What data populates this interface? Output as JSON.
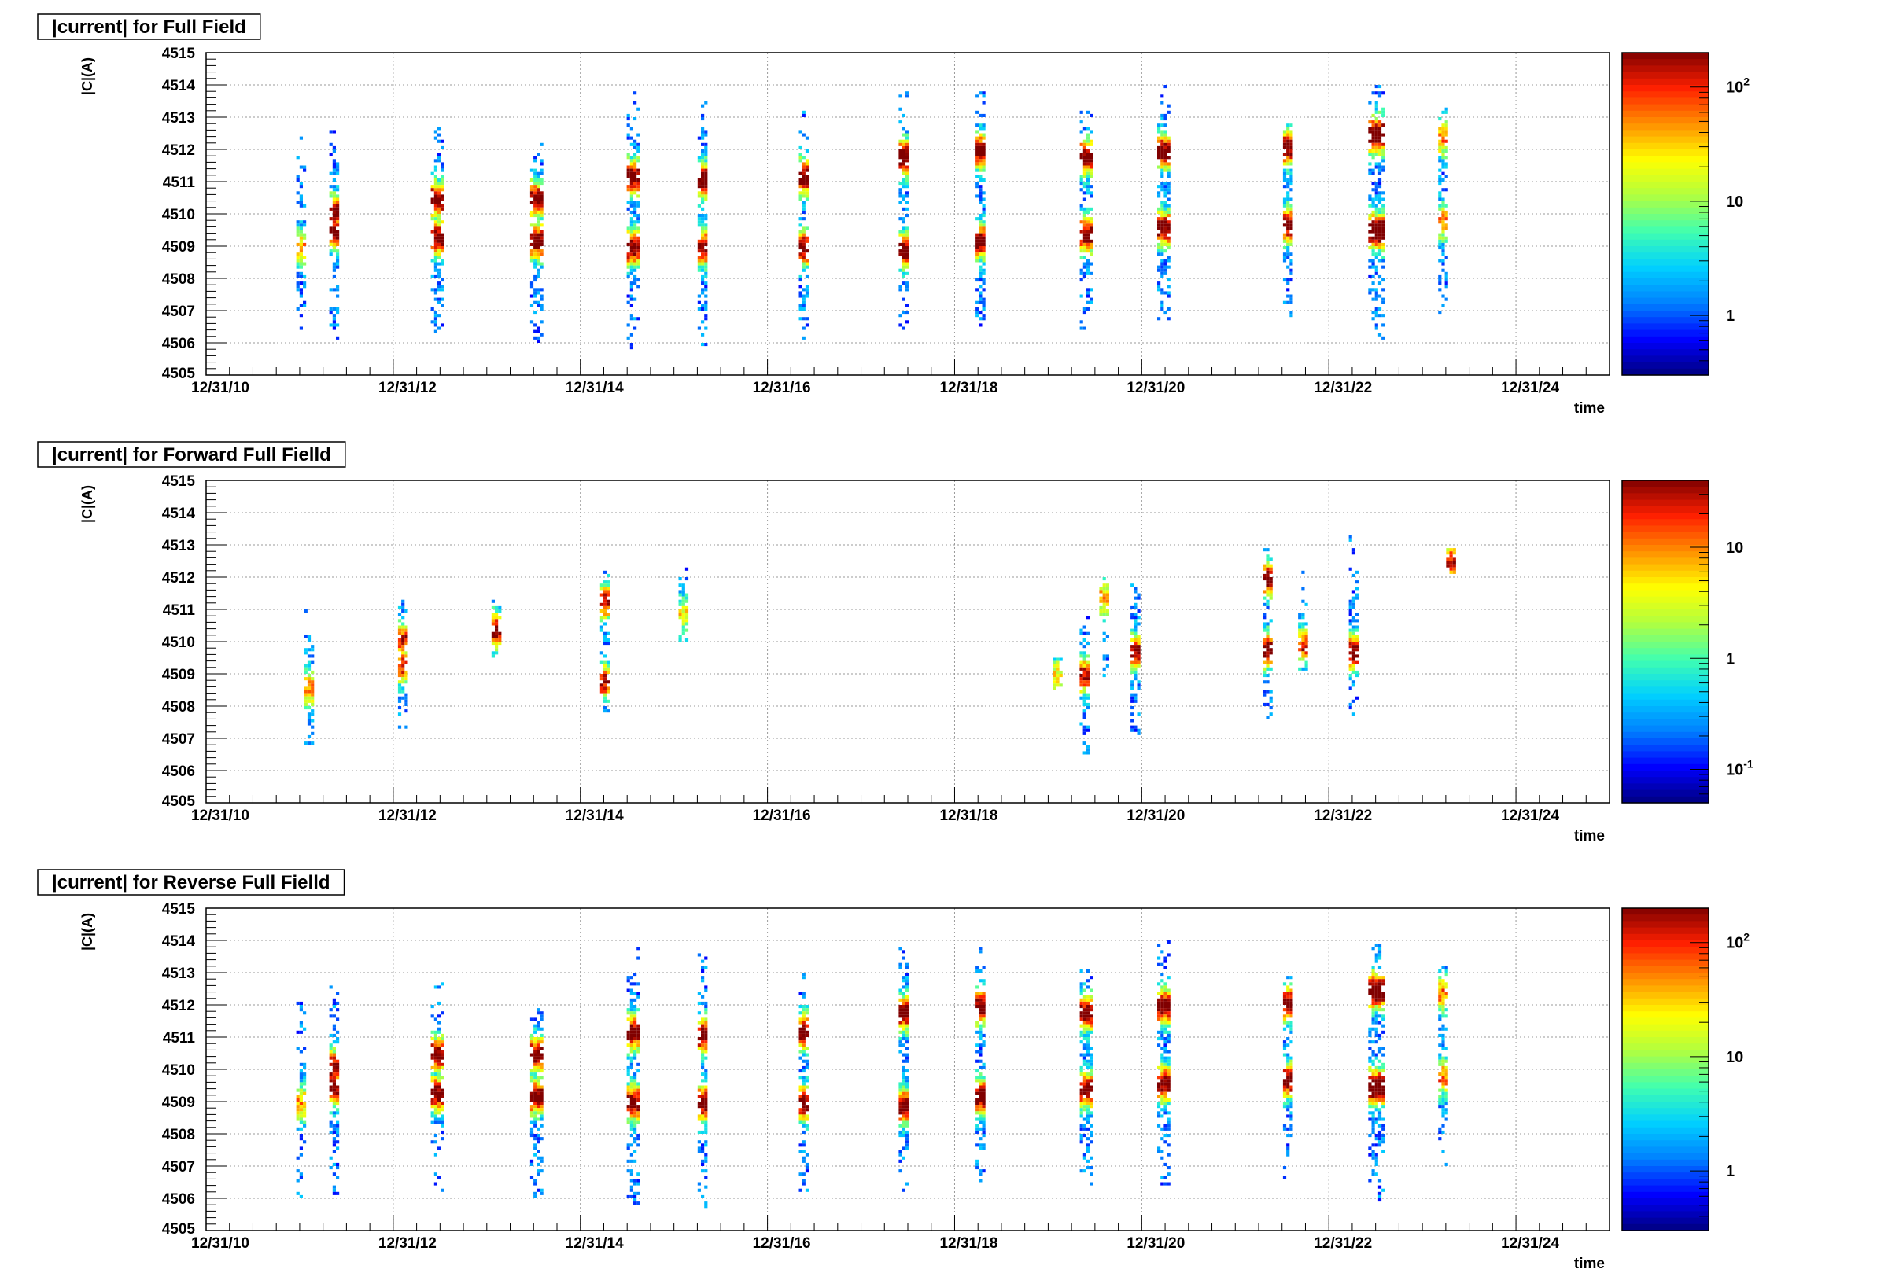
{
  "palette": {
    "scale": [
      "#00007f",
      "#0000ff",
      "#0080ff",
      "#00d0ff",
      "#40ffb0",
      "#b0ff40",
      "#ffff00",
      "#ff9000",
      "#ff2000",
      "#800000"
    ],
    "grid": "#999999",
    "frame": "#000000"
  },
  "chart_data": [
    {
      "type": "heatmap",
      "title": "|current| for Full Field",
      "xlabel": "time",
      "ylabel": "|C|(A)",
      "x_range": [
        "2010-12-31",
        "2025-12-31"
      ],
      "x_ticks": [
        "12/31/10",
        "12/31/12",
        "12/31/14",
        "12/31/16",
        "12/31/18",
        "12/31/20",
        "12/31/22",
        "12/31/24"
      ],
      "ylim": [
        4505,
        4515
      ],
      "y_ticks": [
        "4506",
        "4507",
        "4508",
        "4509",
        "4510",
        "4511",
        "4512",
        "4513",
        "4514",
        "4515"
      ],
      "y_min_label": "4505",
      "grid": true,
      "colorbar": {
        "log": true,
        "min": 0.3,
        "max": 200,
        "labels": [
          {
            "base": "10",
            "exp": "2",
            "value": 100
          },
          {
            "base": "10",
            "exp": "",
            "value": 10
          },
          {
            "base": "1",
            "exp": "",
            "value": 1
          }
        ]
      },
      "clusters": [
        {
          "x": "2011-12-31",
          "y": [
            4506.0,
            4512.4
          ],
          "peaks": [
            4509.0
          ],
          "width_days": 8,
          "level": 0.55
        },
        {
          "x": "2012-05-10",
          "y": [
            4506.0,
            4512.8
          ],
          "peaks": [
            4510.1,
            4509.5
          ],
          "width_days": 30,
          "level": 0.85
        },
        {
          "x": "2013-06-15",
          "y": [
            4506.3,
            4512.8
          ],
          "peaks": [
            4510.5,
            4509.3
          ],
          "width_days": 40,
          "level": 0.85
        },
        {
          "x": "2014-07-10",
          "y": [
            4506.0,
            4512.2
          ],
          "peaks": [
            4510.5,
            4509.2
          ],
          "width_days": 44,
          "level": 0.85
        },
        {
          "x": "2015-07-20",
          "y": [
            4505.9,
            4513.8
          ],
          "peaks": [
            4511.2,
            4509.0
          ],
          "width_days": 40,
          "level": 0.85
        },
        {
          "x": "2016-04-20",
          "y": [
            4505.8,
            4513.6
          ],
          "peaks": [
            4511.1,
            4509.0
          ],
          "width_days": 36,
          "level": 0.85
        },
        {
          "x": "2017-05-15",
          "y": [
            4506.0,
            4513.2
          ],
          "peaks": [
            4511.2,
            4509.0
          ],
          "width_days": 26,
          "level": 0.85
        },
        {
          "x": "2018-06-15",
          "y": [
            4506.3,
            4513.8
          ],
          "peaks": [
            4511.8,
            4508.9
          ],
          "width_days": 38,
          "level": 0.85
        },
        {
          "x": "2019-04-10",
          "y": [
            4506.5,
            4513.8
          ],
          "peaks": [
            4512.0,
            4509.2
          ],
          "width_days": 36,
          "level": 0.85
        },
        {
          "x": "2020-05-25",
          "y": [
            4506.3,
            4513.5
          ],
          "peaks": [
            4511.8,
            4509.4
          ],
          "width_days": 44,
          "level": 0.85
        },
        {
          "x": "2021-03-25",
          "y": [
            4506.5,
            4514.0
          ],
          "peaks": [
            4512.0,
            4509.6
          ],
          "width_days": 48,
          "level": 0.85
        },
        {
          "x": "2022-07-20",
          "y": [
            4506.5,
            4513.0
          ],
          "peaks": [
            4512.1,
            4509.7
          ],
          "width_days": 30,
          "level": 0.85
        },
        {
          "x": "2023-07-01",
          "y": [
            4506.0,
            4514.0
          ],
          "peaks": [
            4512.5,
            4509.5
          ],
          "width_days": 56,
          "level": 0.95
        },
        {
          "x": "2024-03-15",
          "y": [
            4507.0,
            4513.3
          ],
          "peaks": [
            4512.4,
            4509.8
          ],
          "width_days": 16,
          "level": 0.6
        }
      ]
    },
    {
      "type": "heatmap",
      "title": "|current| for Forward Full Fielld",
      "xlabel": "time",
      "ylabel": "|C|(A)",
      "x_range": [
        "2010-12-31",
        "2025-12-31"
      ],
      "x_ticks": [
        "12/31/10",
        "12/31/12",
        "12/31/14",
        "12/31/16",
        "12/31/18",
        "12/31/20",
        "12/31/22",
        "12/31/24"
      ],
      "ylim": [
        4505,
        4515
      ],
      "y_ticks": [
        "4506",
        "4507",
        "4508",
        "4509",
        "4510",
        "4511",
        "4512",
        "4513",
        "4514",
        "4515"
      ],
      "y_min_label": "4505",
      "grid": true,
      "colorbar": {
        "log": true,
        "min": 0.05,
        "max": 40,
        "labels": [
          {
            "base": "10",
            "exp": "",
            "value": 10
          },
          {
            "base": "1",
            "exp": "",
            "value": 1
          },
          {
            "base": "10",
            "exp": "-1",
            "value": 0.1
          }
        ]
      },
      "clusters": [
        {
          "x": "2012-01-31",
          "y": [
            4506.7,
            4511.0
          ],
          "peaks": [
            4508.6
          ],
          "width_days": 6,
          "level": 0.6
        },
        {
          "x": "2013-01-31",
          "y": [
            4507.2,
            4511.3
          ],
          "peaks": [
            4510.1,
            4509.3
          ],
          "width_days": 6,
          "level": 0.7
        },
        {
          "x": "2014-01-31",
          "y": [
            4509.5,
            4511.3
          ],
          "peaks": [
            4510.4
          ],
          "width_days": 6,
          "level": 0.8
        },
        {
          "x": "2015-03-31",
          "y": [
            4507.8,
            4512.5
          ],
          "peaks": [
            4511.3,
            4508.8
          ],
          "width_days": 6,
          "level": 0.75
        },
        {
          "x": "2016-01-31",
          "y": [
            4510.0,
            4512.4
          ],
          "peaks": [
            4510.9
          ],
          "width_days": 6,
          "level": 0.45
        },
        {
          "x": "2020-01-31",
          "y": [
            4508.5,
            4509.5
          ],
          "peaks": [
            4509.0
          ],
          "width_days": 5,
          "level": 0.45
        },
        {
          "x": "2020-05-15",
          "y": [
            4506.5,
            4511.0
          ],
          "peaks": [
            4509.0
          ],
          "width_days": 5,
          "level": 0.75
        },
        {
          "x": "2020-07-31",
          "y": [
            4508.8,
            4512.2
          ],
          "peaks": [
            4511.4
          ],
          "width_days": 5,
          "level": 0.55
        },
        {
          "x": "2020-11-30",
          "y": [
            4507.0,
            4511.9
          ],
          "peaks": [
            4509.7
          ],
          "width_days": 5,
          "level": 0.8
        },
        {
          "x": "2022-04-30",
          "y": [
            4507.5,
            4512.9
          ],
          "peaks": [
            4512.0,
            4509.8
          ],
          "width_days": 6,
          "level": 0.85
        },
        {
          "x": "2022-09-15",
          "y": [
            4509.2,
            4512.3
          ],
          "peaks": [
            4509.9
          ],
          "width_days": 5,
          "level": 0.7
        },
        {
          "x": "2023-04-01",
          "y": [
            4507.4,
            4513.4
          ],
          "peaks": [
            4509.7
          ],
          "width_days": 6,
          "level": 0.85
        },
        {
          "x": "2024-04-15",
          "y": [
            4512.1,
            4512.9
          ],
          "peaks": [
            4512.5
          ],
          "width_days": 6,
          "level": 0.75
        }
      ]
    },
    {
      "type": "heatmap",
      "title": "|current| for Reverse Full Fielld",
      "xlabel": "time",
      "ylabel": "|C|(A)",
      "x_range": [
        "2010-12-31",
        "2025-12-31"
      ],
      "x_ticks": [
        "12/31/10",
        "12/31/12",
        "12/31/14",
        "12/31/16",
        "12/31/18",
        "12/31/20",
        "12/31/22",
        "12/31/24"
      ],
      "ylim": [
        4505,
        4515
      ],
      "y_ticks": [
        "4506",
        "4507",
        "4508",
        "4509",
        "4510",
        "4511",
        "4512",
        "4513",
        "4514",
        "4515"
      ],
      "y_min_label": "4505",
      "grid": true,
      "colorbar": {
        "log": true,
        "min": 0.3,
        "max": 200,
        "labels": [
          {
            "base": "10",
            "exp": "2",
            "value": 100
          },
          {
            "base": "10",
            "exp": "",
            "value": 10
          },
          {
            "base": "1",
            "exp": "",
            "value": 1
          }
        ]
      },
      "clusters": [
        {
          "x": "2011-12-31",
          "y": [
            4506.0,
            4512.4
          ],
          "peaks": [
            4509.0
          ],
          "width_days": 8,
          "level": 0.55
        },
        {
          "x": "2012-05-10",
          "y": [
            4506.0,
            4512.8
          ],
          "peaks": [
            4510.1,
            4509.5
          ],
          "width_days": 30,
          "level": 0.85
        },
        {
          "x": "2013-06-15",
          "y": [
            4506.3,
            4512.8
          ],
          "peaks": [
            4510.5,
            4509.3
          ],
          "width_days": 40,
          "level": 0.85
        },
        {
          "x": "2014-07-10",
          "y": [
            4506.0,
            4512.2
          ],
          "peaks": [
            4510.5,
            4509.2
          ],
          "width_days": 44,
          "level": 0.85
        },
        {
          "x": "2015-07-20",
          "y": [
            4505.9,
            4513.8
          ],
          "peaks": [
            4511.2,
            4509.0
          ],
          "width_days": 40,
          "level": 0.85
        },
        {
          "x": "2016-04-20",
          "y": [
            4505.8,
            4513.6
          ],
          "peaks": [
            4511.1,
            4509.0
          ],
          "width_days": 36,
          "level": 0.85
        },
        {
          "x": "2017-05-15",
          "y": [
            4506.0,
            4513.2
          ],
          "peaks": [
            4511.2,
            4509.0
          ],
          "width_days": 26,
          "level": 0.85
        },
        {
          "x": "2018-06-15",
          "y": [
            4506.3,
            4513.8
          ],
          "peaks": [
            4511.8,
            4508.9
          ],
          "width_days": 38,
          "level": 0.85
        },
        {
          "x": "2019-04-10",
          "y": [
            4506.5,
            4513.8
          ],
          "peaks": [
            4512.0,
            4509.2
          ],
          "width_days": 36,
          "level": 0.85
        },
        {
          "x": "2020-05-25",
          "y": [
            4506.3,
            4513.5
          ],
          "peaks": [
            4511.8,
            4509.4
          ],
          "width_days": 44,
          "level": 0.85
        },
        {
          "x": "2021-03-25",
          "y": [
            4506.5,
            4514.0
          ],
          "peaks": [
            4512.0,
            4509.6
          ],
          "width_days": 48,
          "level": 0.85
        },
        {
          "x": "2022-07-20",
          "y": [
            4506.5,
            4513.0
          ],
          "peaks": [
            4512.1,
            4509.7
          ],
          "width_days": 30,
          "level": 0.85
        },
        {
          "x": "2023-07-01",
          "y": [
            4506.0,
            4514.0
          ],
          "peaks": [
            4512.5,
            4509.5
          ],
          "width_days": 56,
          "level": 0.95
        },
        {
          "x": "2024-03-15",
          "y": [
            4507.0,
            4513.3
          ],
          "peaks": [
            4512.4,
            4509.8
          ],
          "width_days": 16,
          "level": 0.6
        }
      ]
    }
  ]
}
